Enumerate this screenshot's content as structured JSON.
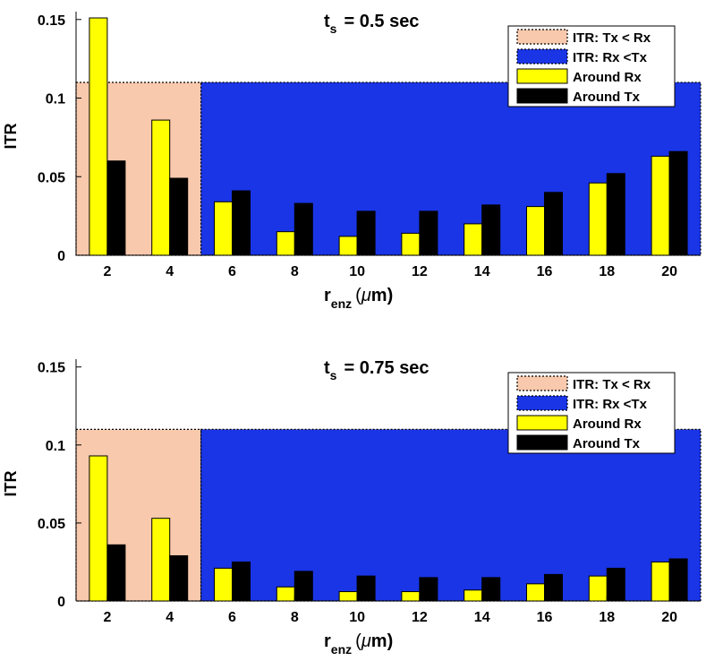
{
  "colors": {
    "region_tx_lt_rx": "#f9c9ad",
    "region_rx_lt_tx": "#1a35e6",
    "around_rx": "#ffff00",
    "around_tx": "#000000"
  },
  "chart_data": [
    {
      "type": "bar",
      "title_main": "t",
      "title_sub": "s",
      "title_rest": "= 0.5 sec",
      "xlabel_main": "r",
      "xlabel_sub": "enz",
      "xlabel_unit_open": "(",
      "xlabel_mu": "μ",
      "xlabel_unit_rest": "m)",
      "ylabel": "ITR",
      "ylim": [
        0,
        0.155
      ],
      "yticks": [
        "0",
        "0.05",
        "0.1",
        "0.15"
      ],
      "ytick_values": [
        0,
        0.05,
        0.1,
        0.15
      ],
      "categories": [
        "2",
        "4",
        "6",
        "8",
        "10",
        "12",
        "14",
        "16",
        "18",
        "20"
      ],
      "series": [
        {
          "name": "Around Rx",
          "values": [
            0.151,
            0.086,
            0.034,
            0.015,
            0.012,
            0.014,
            0.02,
            0.031,
            0.046,
            0.063
          ]
        },
        {
          "name": "Around Tx",
          "values": [
            0.06,
            0.049,
            0.041,
            0.033,
            0.028,
            0.028,
            0.032,
            0.04,
            0.052,
            0.066
          ]
        }
      ],
      "regions": [
        {
          "name": "ITR: Tx < Rx",
          "x_from": 1,
          "x_to": 5,
          "level": 0.11
        },
        {
          "name": "ITR: Rx <Tx",
          "x_from": 5,
          "x_to": 21,
          "level": 0.11
        }
      ],
      "legend": [
        "ITR: Tx < Rx",
        "ITR: Rx <Tx",
        "Around Rx",
        "Around Tx"
      ],
      "legend_position": "top-right"
    },
    {
      "type": "bar",
      "title_main": "t",
      "title_sub": "s",
      "title_rest": "= 0.75 sec",
      "xlabel_main": "r",
      "xlabel_sub": "enz",
      "xlabel_unit_open": "(",
      "xlabel_mu": "μ",
      "xlabel_unit_rest": "m)",
      "ylabel": "ITR",
      "ylim": [
        0,
        0.155
      ],
      "yticks": [
        "0",
        "0.05",
        "0.1",
        "0.15"
      ],
      "ytick_values": [
        0,
        0.05,
        0.1,
        0.15
      ],
      "categories": [
        "2",
        "4",
        "6",
        "8",
        "10",
        "12",
        "14",
        "16",
        "18",
        "20"
      ],
      "series": [
        {
          "name": "Around Rx",
          "values": [
            0.093,
            0.053,
            0.021,
            0.009,
            0.006,
            0.006,
            0.007,
            0.011,
            0.016,
            0.025
          ]
        },
        {
          "name": "Around Tx",
          "values": [
            0.036,
            0.029,
            0.025,
            0.019,
            0.016,
            0.015,
            0.015,
            0.017,
            0.021,
            0.027
          ]
        }
      ],
      "regions": [
        {
          "name": "ITR: Tx < Rx",
          "x_from": 1,
          "x_to": 5,
          "level": 0.11
        },
        {
          "name": "ITR: Rx <Tx",
          "x_from": 5,
          "x_to": 21,
          "level": 0.11
        }
      ],
      "legend": [
        "ITR: Tx < Rx",
        "ITR: Rx <Tx",
        "Around Rx",
        "Around Tx"
      ],
      "legend_position": "top-right"
    }
  ]
}
